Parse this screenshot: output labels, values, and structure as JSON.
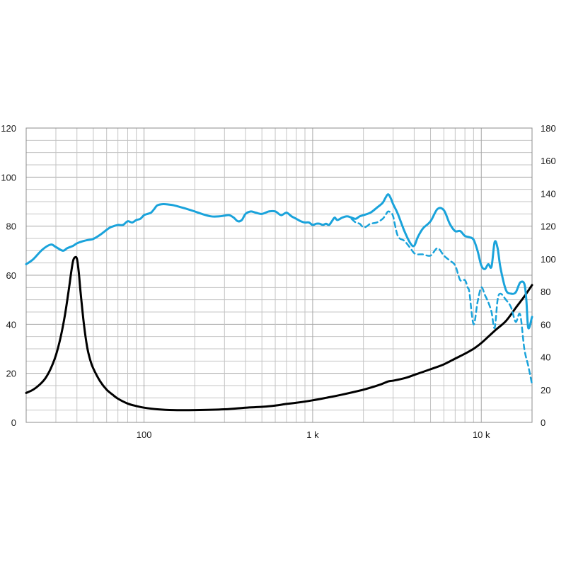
{
  "chart_data": {
    "type": "line",
    "x_scale": "log",
    "xlim": [
      20,
      20000
    ],
    "ylim_left": [
      0,
      120
    ],
    "ylim_right": [
      0,
      180
    ],
    "grid": true,
    "x_tick_labels": [
      {
        "value": 100,
        "label": "100"
      },
      {
        "value": 1000,
        "label": "1 k"
      },
      {
        "value": 10000,
        "label": "10 k"
      }
    ],
    "y_left_ticks": [
      "0",
      "20",
      "40",
      "60",
      "80",
      "100",
      "120"
    ],
    "y_right_ticks": [
      "0",
      "20",
      "40",
      "60",
      "80",
      "100",
      "120",
      "140",
      "160",
      "180"
    ],
    "colors": {
      "spl": "#1aa3db",
      "spl_off_axis": "#1aa3db",
      "impedance": "#000000"
    },
    "series": [
      {
        "key": "spl",
        "axis": "left",
        "style": "solid",
        "x": [
          20,
          22,
          25,
          28,
          30,
          33,
          35,
          38,
          40,
          43,
          46,
          50,
          55,
          60,
          63,
          66,
          70,
          75,
          80,
          85,
          90,
          95,
          100,
          105,
          110,
          115,
          120,
          130,
          140,
          150,
          160,
          180,
          200,
          220,
          250,
          280,
          300,
          320,
          340,
          360,
          380,
          400,
          430,
          460,
          500,
          550,
          600,
          650,
          700,
          750,
          800,
          850,
          900,
          950,
          1000,
          1050,
          1100,
          1150,
          1200,
          1250,
          1300,
          1350,
          1400,
          1500,
          1600,
          1700,
          1800,
          1900,
          2000,
          2200,
          2400,
          2600,
          2700,
          2800,
          2900,
          3000,
          3200,
          3500,
          3800,
          4000,
          4200,
          4500,
          5000,
          5500,
          6000,
          6500,
          7000,
          7500,
          8000,
          8500,
          9000,
          9500,
          10000,
          10500,
          11000,
          11500,
          12000,
          12500,
          13000,
          14000,
          15000,
          16000,
          17000,
          18000,
          18500,
          19000,
          20000
        ],
        "y": [
          64.5,
          66.5,
          70.5,
          72.5,
          71.5,
          70.0,
          71.0,
          72.0,
          73.0,
          73.8,
          74.3,
          74.8,
          76.5,
          78.5,
          79.5,
          80.0,
          80.5,
          80.5,
          82.0,
          81.5,
          82.5,
          83.0,
          84.5,
          85.0,
          85.5,
          87.0,
          88.5,
          89.0,
          88.8,
          88.5,
          88.0,
          87.0,
          86.0,
          85.0,
          84.0,
          84.0,
          84.3,
          84.5,
          83.5,
          82.0,
          82.5,
          85.0,
          86.0,
          85.5,
          85.0,
          86.0,
          86.0,
          84.5,
          85.5,
          84.0,
          83.0,
          82.0,
          81.5,
          81.5,
          80.5,
          81.0,
          81.0,
          80.5,
          81.0,
          80.5,
          82.0,
          83.5,
          82.5,
          83.5,
          84.0,
          83.5,
          83.0,
          84.0,
          84.5,
          85.5,
          87.5,
          89.5,
          91.5,
          93.0,
          91.5,
          89.0,
          85.0,
          78.0,
          73.0,
          72.0,
          75.5,
          79.0,
          82.0,
          87.0,
          86.5,
          81.0,
          78.0,
          78.0,
          76.0,
          75.5,
          74.5,
          70.0,
          64.0,
          62.5,
          64.5,
          63.5,
          73.5,
          71.0,
          63.0,
          54.0,
          52.5,
          53.0,
          57.0,
          56.5,
          50.0,
          38.5,
          43.0
        ]
      },
      {
        "key": "spl_off_axis",
        "axis": "left",
        "style": "dashed",
        "x": [
          1700,
          1800,
          1900,
          2000,
          2100,
          2200,
          2400,
          2600,
          2700,
          2800,
          2900,
          3000,
          3200,
          3500,
          3800,
          4000,
          4200,
          4500,
          5000,
          5500,
          6000,
          6500,
          7000,
          7500,
          8000,
          8300,
          8500,
          9000,
          9500,
          10000,
          10500,
          11000,
          11500,
          12000,
          12500,
          13000,
          14000,
          15000,
          16000,
          17000,
          18000,
          19000,
          20000
        ],
        "y": [
          83.0,
          81.5,
          81.0,
          79.5,
          80.0,
          81.0,
          81.5,
          83.0,
          84.5,
          86.0,
          85.5,
          84.0,
          76.0,
          74.0,
          71.0,
          69.0,
          68.5,
          68.5,
          68.0,
          71.0,
          68.0,
          66.0,
          64.0,
          58.0,
          58.0,
          55.0,
          53.0,
          40.0,
          49.0,
          55.0,
          52.0,
          49.0,
          45.0,
          38.5,
          50.0,
          52.5,
          50.0,
          47.0,
          41.0,
          44.0,
          30.0,
          23.0,
          15.5
        ]
      },
      {
        "key": "impedance",
        "axis": "right",
        "style": "solid",
        "x": [
          20,
          22,
          24,
          26,
          28,
          30,
          32,
          34,
          36,
          37,
          38,
          39,
          40,
          41,
          42,
          44,
          46,
          48,
          50,
          55,
          60,
          65,
          70,
          80,
          90,
          100,
          120,
          150,
          200,
          300,
          400,
          500,
          600,
          700,
          800,
          1000,
          1200,
          1500,
          2000,
          2500,
          2800,
          3000,
          3500,
          4000,
          5000,
          6000,
          7000,
          8000,
          9000,
          10000,
          12000,
          14000,
          16000,
          18000,
          20000
        ],
        "y": [
          18,
          20,
          23,
          27,
          33,
          41,
          52,
          66,
          83,
          92,
          99,
          101,
          100,
          92,
          80,
          60,
          46,
          38,
          33,
          25,
          20,
          17,
          14.5,
          11.5,
          10,
          9,
          8,
          7.5,
          7.5,
          8,
          9,
          9.5,
          10.3,
          11.3,
          12,
          13.5,
          15,
          17,
          20,
          23,
          25,
          25.5,
          27,
          29,
          32.5,
          35.5,
          39,
          42,
          45,
          48.5,
          56,
          62,
          70,
          77,
          84
        ]
      }
    ]
  }
}
